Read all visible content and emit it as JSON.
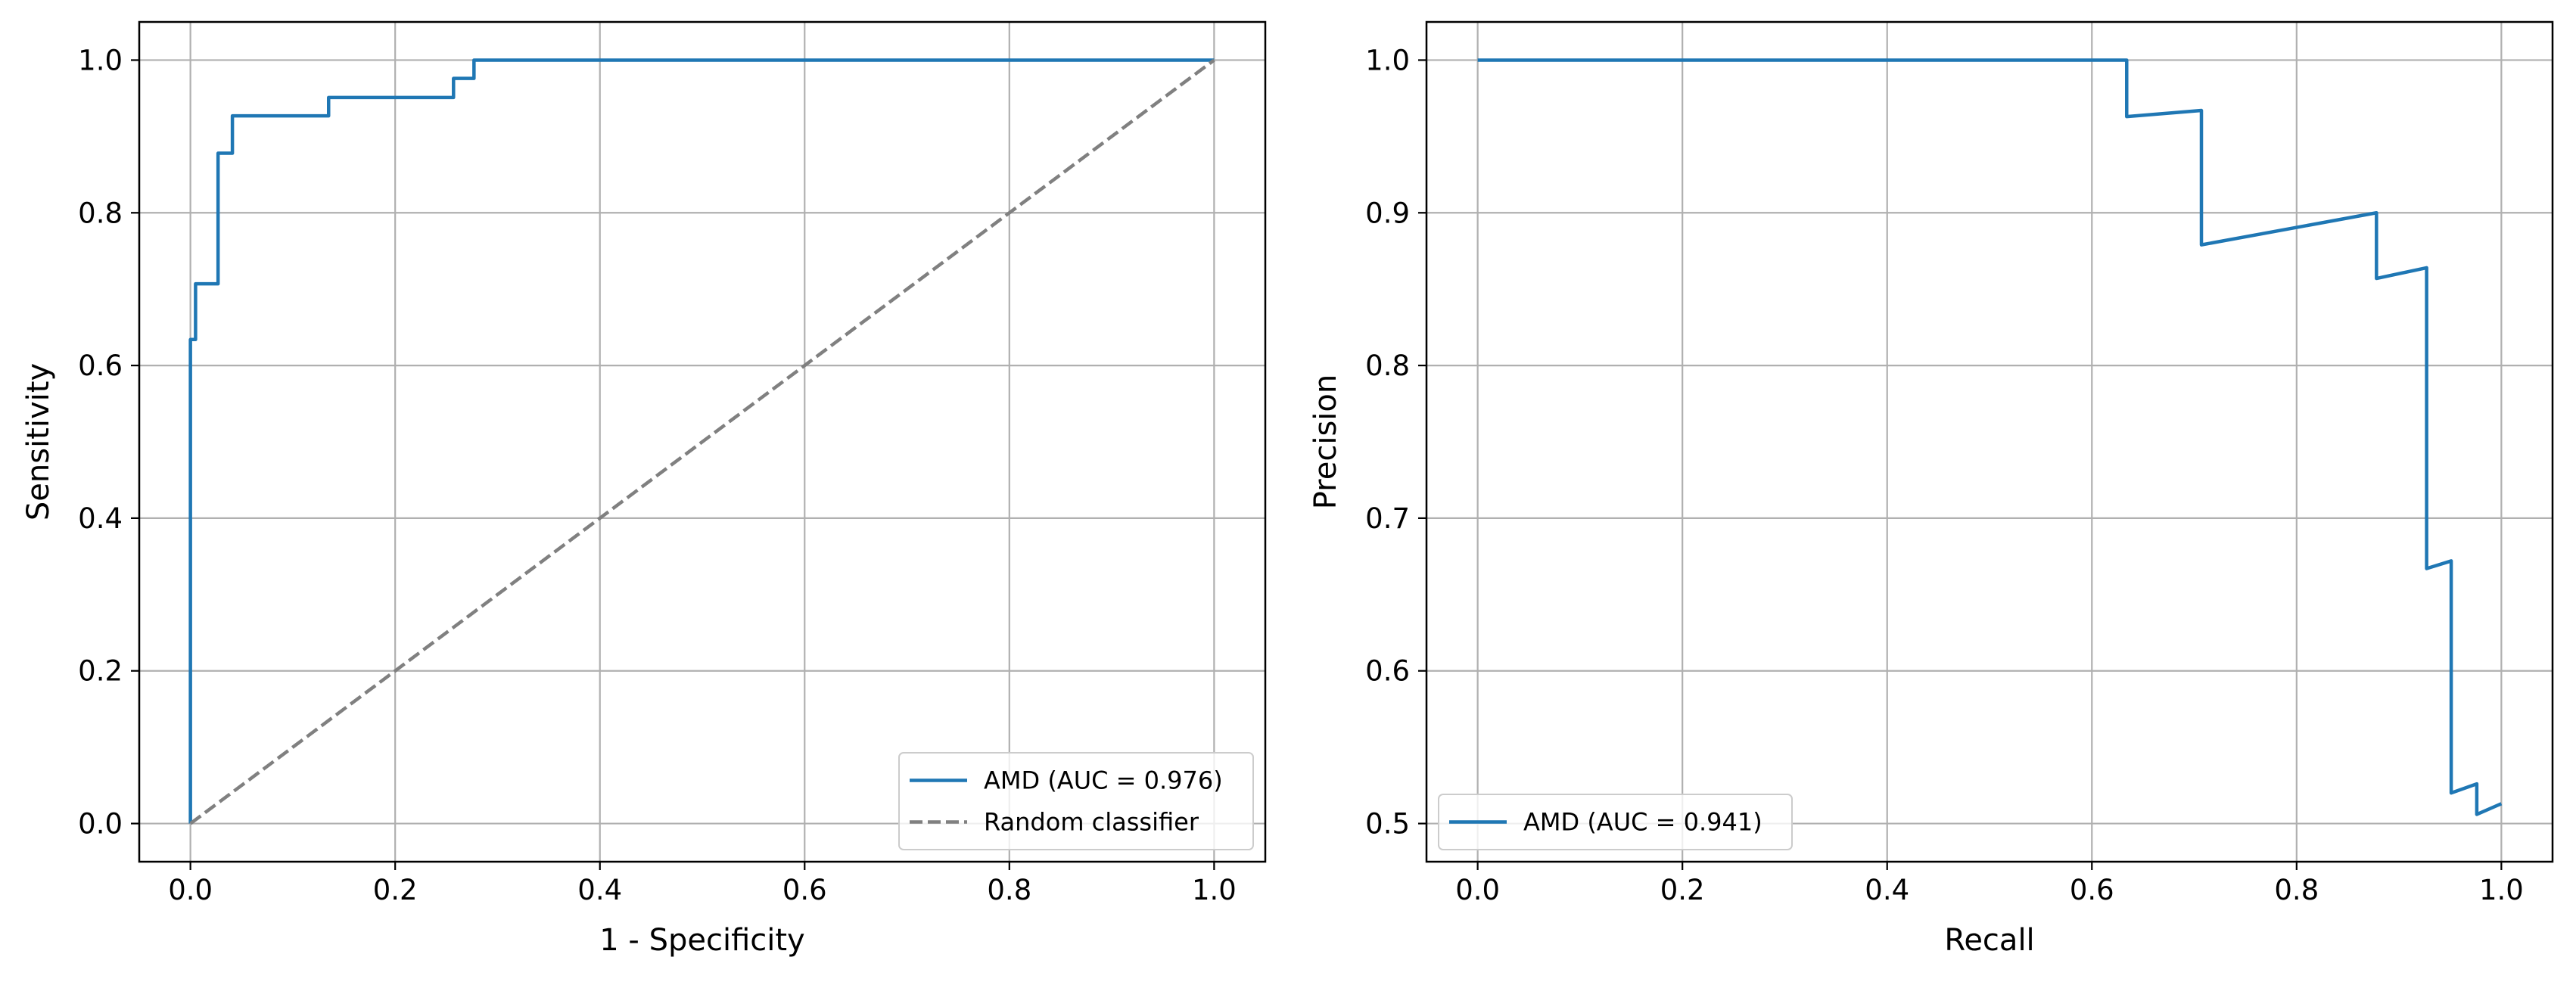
{
  "chart_data": [
    {
      "type": "line",
      "title": "",
      "xlabel": "1 - Specificity",
      "ylabel": "Sensitivity",
      "xlim": [
        -0.05,
        1.05
      ],
      "ylim": [
        -0.05,
        1.05
      ],
      "xticks": [
        0.0,
        0.2,
        0.4,
        0.6,
        0.8,
        1.0
      ],
      "yticks": [
        0.0,
        0.2,
        0.4,
        0.6,
        0.8,
        1.0
      ],
      "xtick_labels": [
        "0.0",
        "0.2",
        "0.4",
        "0.6",
        "0.8",
        "1.0"
      ],
      "ytick_labels": [
        "0.0",
        "0.2",
        "0.4",
        "0.6",
        "0.8",
        "1.0"
      ],
      "grid": true,
      "legend_position": "lower-right",
      "series": [
        {
          "name": "AMD (AUC = 0.976)",
          "color": "#1f77b4",
          "style": "solid",
          "x": [
            0.0,
            0.0,
            0.005,
            0.005,
            0.027,
            0.027,
            0.041,
            0.041,
            0.135,
            0.135,
            0.257,
            0.257,
            0.277,
            0.277,
            1.0
          ],
          "y": [
            0.0,
            0.634,
            0.634,
            0.707,
            0.707,
            0.878,
            0.878,
            0.927,
            0.927,
            0.951,
            0.951,
            0.976,
            0.976,
            1.0,
            1.0
          ]
        },
        {
          "name": "Random classifier",
          "color": "#808080",
          "style": "dashed",
          "x": [
            0.0,
            1.0
          ],
          "y": [
            0.0,
            1.0
          ]
        }
      ]
    },
    {
      "type": "line",
      "title": "",
      "xlabel": "Recall",
      "ylabel": "Precision",
      "xlim": [
        -0.05,
        1.05
      ],
      "ylim": [
        0.475,
        1.025
      ],
      "xticks": [
        0.0,
        0.2,
        0.4,
        0.6,
        0.8,
        1.0
      ],
      "yticks": [
        0.5,
        0.6,
        0.7,
        0.8,
        0.9,
        1.0
      ],
      "xtick_labels": [
        "0.0",
        "0.2",
        "0.4",
        "0.6",
        "0.8",
        "1.0"
      ],
      "ytick_labels": [
        "0.5",
        "0.6",
        "0.7",
        "0.8",
        "0.9",
        "1.0"
      ],
      "grid": true,
      "legend_position": "lower-left",
      "series": [
        {
          "name": "AMD (AUC = 0.941)",
          "color": "#1f77b4",
          "style": "solid",
          "x": [
            0.0,
            0.634,
            0.634,
            0.707,
            0.707,
            0.878,
            0.878,
            0.927,
            0.927,
            0.951,
            0.951,
            0.976,
            0.976,
            1.0
          ],
          "y": [
            1.0,
            1.0,
            0.963,
            0.967,
            0.879,
            0.9,
            0.857,
            0.864,
            0.667,
            0.672,
            0.52,
            0.526,
            0.506,
            0.513
          ]
        }
      ]
    }
  ]
}
